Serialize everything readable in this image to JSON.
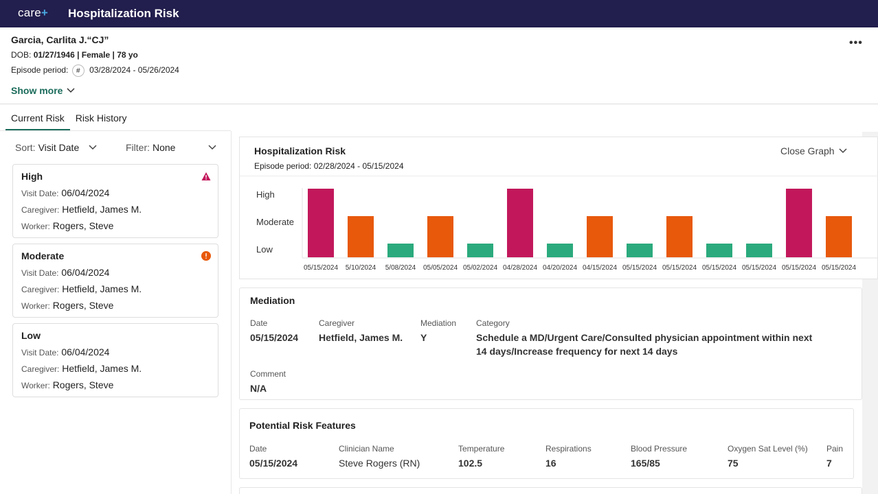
{
  "app": {
    "logo_text": "care",
    "logo_plus": "+",
    "title": "Hospitalization Risk"
  },
  "patient": {
    "name": "Garcia, Carlita J.",
    "nickname": "“CJ”",
    "dob_label": "DOB:",
    "dob": "01/27/1946",
    "sex": "Female",
    "age": "78 yo",
    "episode_label": "Episode period:",
    "episode_icon": "#",
    "episode": "03/28/2024 - 05/26/2024",
    "show_more": "Show more",
    "menu": "•••"
  },
  "tabs": [
    {
      "label": "Current Risk"
    },
    {
      "label": "Risk History"
    }
  ],
  "sort": {
    "label": "Sort:",
    "value": "Visit Date"
  },
  "filter": {
    "label": "Filter:",
    "value": "None"
  },
  "cards": [
    {
      "level": "High",
      "visit_label": "Visit Date:",
      "visit": "06/04/2024",
      "caregiver_label": "Caregiver:",
      "caregiver": "Hetfield, James M.",
      "worker_label": "Worker:",
      "worker": "Rogers, Steve",
      "icon": "warning-triangle-icon",
      "icon_color": "#c2185b"
    },
    {
      "level": "Moderate",
      "visit_label": "Visit Date:",
      "visit": "06/04/2024",
      "caregiver_label": "Caregiver:",
      "caregiver": "Hetfield, James M.",
      "worker_label": "Worker:",
      "worker": "Rogers, Steve",
      "icon": "alert-circle-icon",
      "icon_color": "#e8590c"
    },
    {
      "level": "Low",
      "visit_label": "Visit Date:",
      "visit": "06/04/2024",
      "caregiver_label": "Caregiver:",
      "caregiver": "Hetfield, James M.",
      "worker_label": "Worker:",
      "worker": "Rogers, Steve"
    }
  ],
  "graph": {
    "title": "Hospitalization Risk",
    "subtitle": "Episode period: 02/28/2024 - 05/15/2024",
    "close_label": "Close Graph"
  },
  "chart_data": {
    "type": "bar",
    "levels": [
      "Low",
      "Moderate",
      "High"
    ],
    "categories": [
      "05/15/2024",
      "5/10/2024",
      "5/08/2024",
      "05/05/2024",
      "05/02/2024",
      "04/28/2024",
      "04/20/2024",
      "04/15/2024",
      "05/15/2024",
      "05/15/2024",
      "05/15/2024",
      "05/15/2024",
      "05/15/2024",
      "05/15/2024"
    ],
    "values": [
      "High",
      "Moderate",
      "Low",
      "Moderate",
      "Low",
      "High",
      "Low",
      "Moderate",
      "Low",
      "Moderate",
      "Low",
      "Low",
      "High",
      "Moderate"
    ],
    "colors": {
      "High": "#c2185b",
      "Moderate": "#e8590c",
      "Low": "#2baa7d"
    }
  },
  "mediation": {
    "title": "Mediation",
    "date_label": "Date",
    "date": "05/15/2024",
    "caregiver_label": "Caregiver",
    "caregiver": "Hetfield, James M.",
    "mediation_label": "Mediation",
    "mediation": "Y",
    "category_label": "Category",
    "category_line1": "Schedule a MD/Urgent Care/Consulted physician appointment within next",
    "category_line2": "14 days/Increase frequency for next 14 days",
    "comment_label": "Comment",
    "comment": "N/A"
  },
  "risk_features": {
    "title": "Potential Risk Features",
    "date_label": "Date",
    "date": "05/15/2024",
    "clinician_label": "Clinician Name",
    "clinician": "Steve Rogers",
    "clinician_role": "(RN)",
    "temperature_label": "Temperature",
    "temperature": "102.5",
    "respirations_label": "Respirations",
    "respirations": "16",
    "bp_label": "Blood Pressure",
    "bp": "165/85",
    "oxygen_label": "Oxygen Sat Level (%)",
    "oxygen": "75",
    "pain_label": "Pain",
    "pain": "7"
  }
}
